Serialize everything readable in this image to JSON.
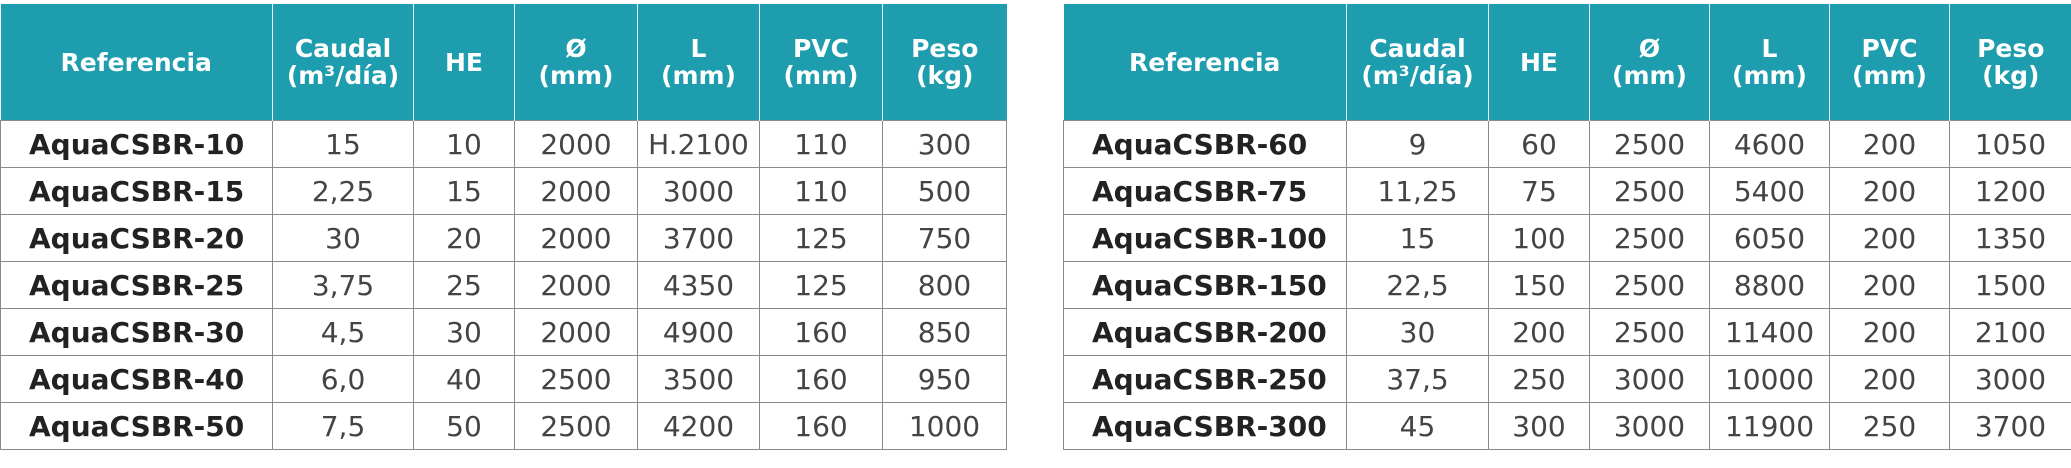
{
  "tables": [
    {
      "headers": [
        "Referencia",
        "Caudal\n(m³/día)",
        "HE",
        "Ø\n(mm)",
        "L\n(mm)",
        "PVC\n(mm)",
        "Peso\n(kg)"
      ],
      "rows": [
        [
          "AquaCSBR-10",
          "15",
          "10",
          "2000",
          "H.2100",
          "110",
          "300"
        ],
        [
          "AquaCSBR-15",
          "2,25",
          "15",
          "2000",
          "3000",
          "110",
          "500"
        ],
        [
          "AquaCSBR-20",
          "30",
          "20",
          "2000",
          "3700",
          "125",
          "750"
        ],
        [
          "AquaCSBR-25",
          "3,75",
          "25",
          "2000",
          "4350",
          "125",
          "800"
        ],
        [
          "AquaCSBR-30",
          "4,5",
          "30",
          "2000",
          "4900",
          "160",
          "850"
        ],
        [
          "AquaCSBR-40",
          "6,0",
          "40",
          "2500",
          "3500",
          "160",
          "950"
        ],
        [
          "AquaCSBR-50",
          "7,5",
          "50",
          "2500",
          "4200",
          "160",
          "1000"
        ]
      ]
    },
    {
      "headers": [
        "Referencia",
        "Caudal\n(m³/día)",
        "HE",
        "Ø\n(mm)",
        "L\n(mm)",
        "PVC\n(mm)",
        "Peso\n(kg)"
      ],
      "rows": [
        [
          "AquaCSBR-60",
          "9",
          "60",
          "2500",
          "4600",
          "200",
          "1050"
        ],
        [
          "AquaCSBR-75",
          "11,25",
          "75",
          "2500",
          "5400",
          "200",
          "1200"
        ],
        [
          "AquaCSBR-100",
          "15",
          "100",
          "2500",
          "6050",
          "200",
          "1350"
        ],
        [
          "AquaCSBR-150",
          "22,5",
          "150",
          "2500",
          "8800",
          "200",
          "1500"
        ],
        [
          "AquaCSBR-200",
          "30",
          "200",
          "2500",
          "11400",
          "200",
          "2100"
        ],
        [
          "AquaCSBR-250",
          "37,5",
          "250",
          "3000",
          "10000",
          "200",
          "3000"
        ],
        [
          "AquaCSBR-300",
          "45",
          "300",
          "3000",
          "11900",
          "250",
          "3700"
        ]
      ]
    }
  ]
}
